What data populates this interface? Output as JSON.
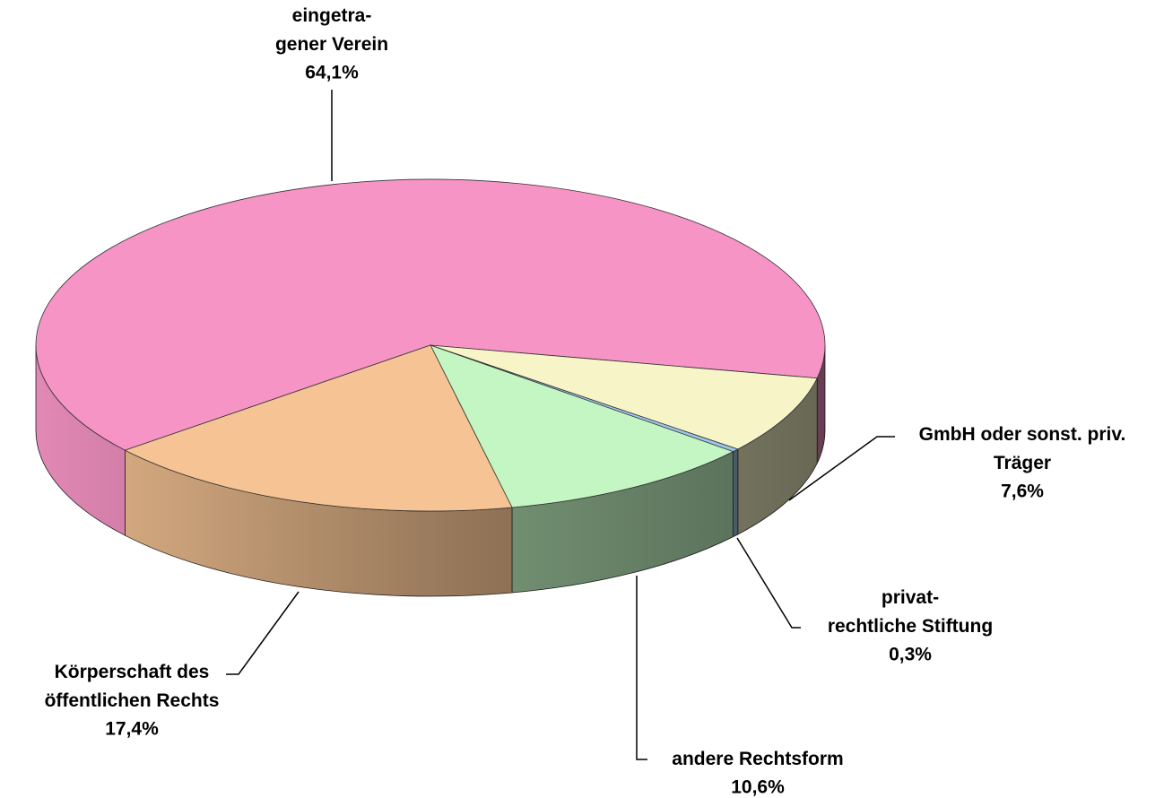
{
  "chart_data": {
    "type": "pie3d",
    "categories": [
      "eingetra-\ngener Verein",
      "GmbH oder sonst. priv.\nTräger",
      "privat-\nrechtliche Stiftung",
      "andere Rechtsform",
      "Körperschaft des\nöffentlichen Rechts"
    ],
    "values": [
      64.1,
      7.6,
      0.3,
      10.6,
      17.4
    ],
    "value_labels": [
      "64,1%",
      "7,6%",
      "0,3%",
      "10,6%",
      "17,4%"
    ],
    "colors": [
      "#f694c5",
      "#f7f5c8",
      "#9cc4e8",
      "#c4f6c4",
      "#f6c494"
    ]
  }
}
